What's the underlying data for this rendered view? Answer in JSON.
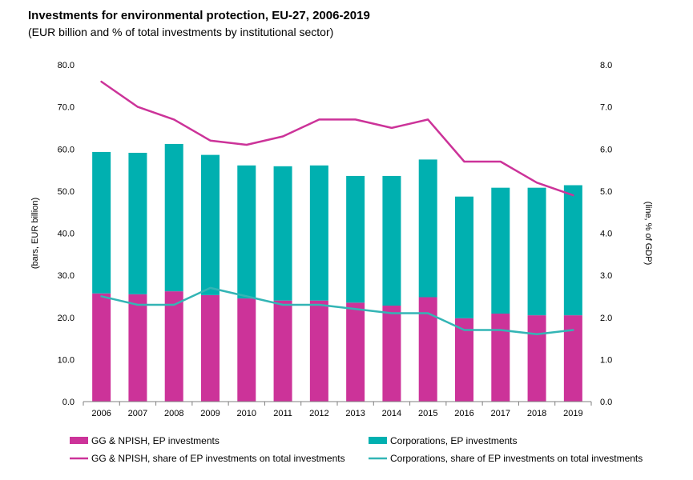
{
  "title": "Investments for environmental protection, EU-27, 2006-2019",
  "subtitle": "(EUR billion and % of total investments by institutional sector)",
  "chart_data": {
    "type": "bar",
    "stacked": true,
    "categories": [
      "2006",
      "2007",
      "2008",
      "2009",
      "2010",
      "2011",
      "2012",
      "2013",
      "2014",
      "2015",
      "2016",
      "2017",
      "2018",
      "2019"
    ],
    "y_left_label": "(bars, EUR billion)",
    "y_right_label": "(line, % of GDP)",
    "y_left_lim": [
      0,
      80
    ],
    "y_right_lim": [
      0,
      8
    ],
    "y_left_ticks": [
      "0.0",
      "10.0",
      "20.0",
      "30.0",
      "40.0",
      "50.0",
      "60.0",
      "70.0",
      "80.0"
    ],
    "y_right_ticks": [
      "0.0",
      "1.0",
      "2.0",
      "3.0",
      "4.0",
      "5.0",
      "6.0",
      "7.0",
      "8.0"
    ],
    "grid": false,
    "legend_position": "bottom",
    "bar_series": [
      {
        "name": "GG & NPISH, EP investments",
        "color": "#CC3399",
        "values": [
          25.7,
          25.5,
          26.2,
          25.3,
          24.5,
          24.0,
          24.0,
          23.5,
          22.8,
          24.8,
          19.8,
          20.9,
          20.5,
          20.5
        ]
      },
      {
        "name": "Corporations, EP investments",
        "color": "#00B0B0",
        "values": [
          33.6,
          33.6,
          35.0,
          33.3,
          31.6,
          31.9,
          32.1,
          30.1,
          30.8,
          32.7,
          28.9,
          29.9,
          30.3,
          30.9
        ]
      }
    ],
    "line_series": [
      {
        "name": "GG & NPISH, share of EP investments on total investments",
        "color": "#CC3399",
        "values": [
          7.6,
          7.0,
          6.7,
          6.2,
          6.1,
          6.3,
          6.7,
          6.7,
          6.5,
          6.7,
          5.7,
          5.7,
          5.2,
          4.9
        ]
      },
      {
        "name": "Corporations, share of EP investments on total investments",
        "color": "#33B5B5",
        "values": [
          2.5,
          2.3,
          2.3,
          2.7,
          2.5,
          2.3,
          2.3,
          2.2,
          2.1,
          2.1,
          1.7,
          1.7,
          1.6,
          1.7
        ]
      }
    ]
  }
}
